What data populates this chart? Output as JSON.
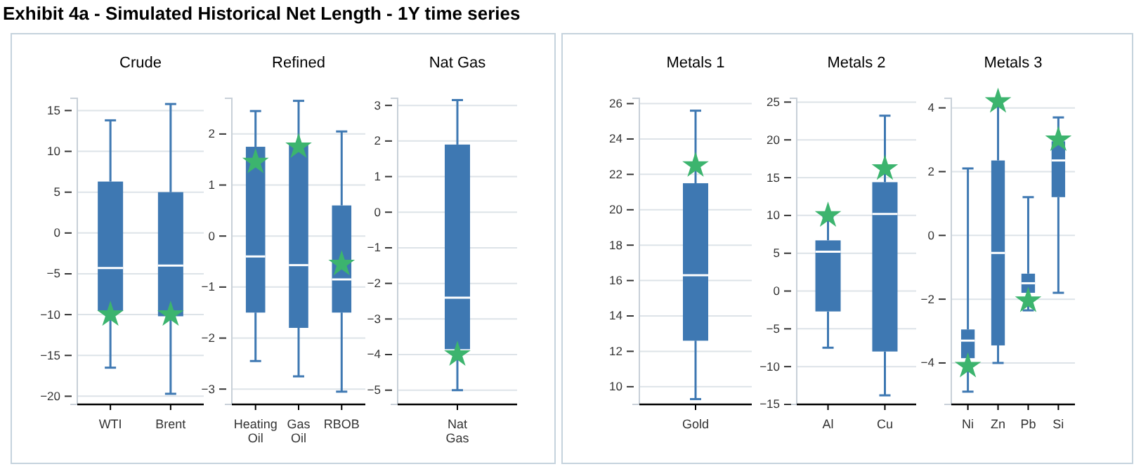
{
  "chart_data": [
    {
      "type": "box",
      "title": "Crude",
      "annotations": [
        "Exhibit 4a - Simulated Historical Net Length - 1Y time series"
      ],
      "categories": [
        "WTI",
        "Brent"
      ],
      "ylim": [
        -21,
        16.5
      ],
      "yticks": [
        -20,
        -15,
        -10,
        -5,
        0,
        5,
        10,
        15
      ],
      "grid": "y",
      "marker": "star",
      "series": [
        {
          "type": "box",
          "color": "#3e78b2",
          "boxes": [
            {
              "low": -16.5,
              "q1": -9.5,
              "median": -4.3,
              "q3": 6.3,
              "high": 13.8
            },
            {
              "low": -19.7,
              "q1": -10.2,
              "median": -4,
              "q3": 5,
              "high": 15.8
            }
          ]
        },
        {
          "type": "scatter",
          "color": "#3cb46e",
          "x": [
            "WTI",
            "Brent"
          ],
          "values": [
            -10,
            -10
          ]
        }
      ]
    },
    {
      "type": "box",
      "title": "Refined",
      "categories": [
        "Heating Oil",
        "Gas Oil",
        "RBOB"
      ],
      "ylim": [
        -3.3,
        2.7
      ],
      "yticks": [
        -3,
        -2,
        -1,
        0,
        1,
        2
      ],
      "grid": "y",
      "marker": "star",
      "series": [
        {
          "type": "box",
          "color": "#3e78b2",
          "boxes": [
            {
              "low": -2.45,
              "q1": -1.5,
              "median": -0.4,
              "q3": 1.75,
              "high": 2.45
            },
            {
              "low": -2.75,
              "q1": -1.8,
              "median": -0.57,
              "q3": 1.8,
              "high": 2.65
            },
            {
              "low": -3.05,
              "q1": -1.5,
              "median": -0.85,
              "q3": 0.6,
              "high": 2.05
            }
          ]
        },
        {
          "type": "scatter",
          "color": "#3cb46e",
          "x": [
            "Heating Oil",
            "Gas Oil",
            "RBOB"
          ],
          "values": [
            1.45,
            1.75,
            -0.55
          ]
        }
      ]
    },
    {
      "type": "box",
      "title": "Nat Gas",
      "categories": [
        "Nat Gas"
      ],
      "ylim": [
        -5.4,
        3.2
      ],
      "yticks": [
        -5,
        -4,
        -3,
        -2,
        -1,
        0,
        1,
        2,
        3
      ],
      "grid": "y",
      "marker": "star",
      "series": [
        {
          "type": "box",
          "color": "#3e78b2",
          "boxes": [
            {
              "low": -5,
              "q1": -3.85,
              "median": -2.4,
              "q3": 1.9,
              "high": 3.15
            }
          ]
        },
        {
          "type": "scatter",
          "color": "#3cb46e",
          "x": [
            "Nat Gas"
          ],
          "values": [
            -4
          ]
        }
      ]
    },
    {
      "type": "box",
      "title": "Metals 1",
      "categories": [
        "Gold"
      ],
      "ylim": [
        9,
        26.3
      ],
      "yticks": [
        10,
        12,
        14,
        16,
        18,
        20,
        22,
        24,
        26
      ],
      "grid": "y",
      "marker": "star",
      "series": [
        {
          "type": "box",
          "color": "#3e78b2",
          "boxes": [
            {
              "low": 9.3,
              "q1": 12.6,
              "median": 16.3,
              "q3": 21.5,
              "high": 25.6
            }
          ]
        },
        {
          "type": "scatter",
          "color": "#3cb46e",
          "x": [
            "Gold"
          ],
          "values": [
            22.5
          ]
        }
      ]
    },
    {
      "type": "box",
      "title": "Metals 2",
      "categories": [
        "Al",
        "Cu"
      ],
      "ylim": [
        -15,
        25.5
      ],
      "yticks": [
        -15,
        -10,
        -5,
        0,
        5,
        10,
        15,
        20,
        25
      ],
      "grid": "y",
      "marker": "star",
      "series": [
        {
          "type": "box",
          "color": "#3e78b2",
          "boxes": [
            {
              "low": -7.5,
              "q1": -2.7,
              "median": 5.2,
              "q3": 6.7,
              "high": 9.8
            },
            {
              "low": -13.8,
              "q1": -8,
              "median": 10.2,
              "q3": 14.4,
              "high": 23.2
            }
          ]
        },
        {
          "type": "scatter",
          "color": "#3cb46e",
          "x": [
            "Al",
            "Cu"
          ],
          "values": [
            10,
            16.2
          ]
        }
      ]
    },
    {
      "type": "box",
      "title": "Metals 3",
      "categories": [
        "Ni",
        "Zn",
        "Pb",
        "Si"
      ],
      "ylim": [
        -5.3,
        4.3
      ],
      "yticks": [
        -4,
        -2,
        0,
        2,
        4
      ],
      "grid": "y",
      "marker": "star",
      "series": [
        {
          "type": "box",
          "color": "#3e78b2",
          "boxes": [
            {
              "low": -4.9,
              "q1": -3.85,
              "median": -3.3,
              "q3": -2.95,
              "high": 2.1
            },
            {
              "low": -4,
              "q1": -3.45,
              "median": -0.55,
              "q3": 2.35,
              "high": 4.2
            },
            {
              "low": -2.35,
              "q1": -1.8,
              "median": -1.5,
              "q3": -1.2,
              "high": 1.2
            },
            {
              "low": -1.8,
              "q1": 1.2,
              "median": 2.35,
              "q3": 2.95,
              "high": 3.7
            }
          ]
        },
        {
          "type": "scatter",
          "color": "#3cb46e",
          "x": [
            "Ni",
            "Zn",
            "Pb",
            "Si"
          ],
          "values": [
            -4.1,
            4.2,
            -2.05,
            3.0
          ]
        }
      ]
    }
  ]
}
